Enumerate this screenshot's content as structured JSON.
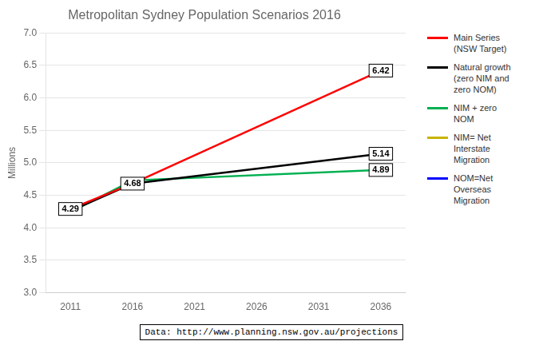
{
  "chart_data": {
    "type": "line",
    "title": "Metropolitan Sydney Population Scenarios 2016",
    "y_label": "Millions",
    "x": [
      2011,
      2016,
      2036
    ],
    "xlim": [
      2009,
      2038
    ],
    "xticks": [
      2011,
      2016,
      2021,
      2026,
      2031,
      2036
    ],
    "ylim": [
      3.0,
      7.0
    ],
    "yticks": [
      {
        "value": 3.0,
        "label": "3.0"
      },
      3.5,
      {
        "value": 4.0,
        "label": "4.0"
      },
      4.5,
      {
        "value": 5.0,
        "label": "5.0"
      },
      5.5,
      {
        "value": 6.0,
        "label": "6.0"
      },
      6.5,
      {
        "value": 7.0,
        "label": "7.0"
      }
    ],
    "series": [
      {
        "name": "Main Series\n(NSW Target)",
        "color": "#ff0000",
        "values": [
          4.29,
          4.68,
          6.42
        ]
      },
      {
        "name": "Natural growth\n(zero NIM and\nzero NOM)",
        "color": "#000000",
        "values": [
          4.26,
          4.68,
          5.14
        ]
      },
      {
        "name": "NIM + zero\nNOM",
        "color": "#00b050",
        "values": [
          4.24,
          4.73,
          4.89
        ]
      },
      {
        "name": "NIM= Net\nInterstate\nMigration",
        "color": "#c8b400",
        "values": [
          null,
          null,
          null
        ]
      },
      {
        "name": "NOM=Net\nOverseas\nMigration",
        "color": "#0000ff",
        "values": [
          null,
          null,
          null
        ]
      }
    ],
    "annotations": [
      {
        "text": "4.29",
        "x": 2011,
        "y": 4.29
      },
      {
        "text": "4.68",
        "x": 2016,
        "y": 4.68
      },
      {
        "text": "6.42",
        "x": 2036,
        "y": 6.42
      },
      {
        "text": "5.14",
        "x": 2036,
        "y": 5.14
      },
      {
        "text": "4.89",
        "x": 2036,
        "y": 4.89
      }
    ],
    "source": "Data: http://www.planning.nsw.gov.au/projections",
    "grid": "y",
    "legend": "right"
  }
}
